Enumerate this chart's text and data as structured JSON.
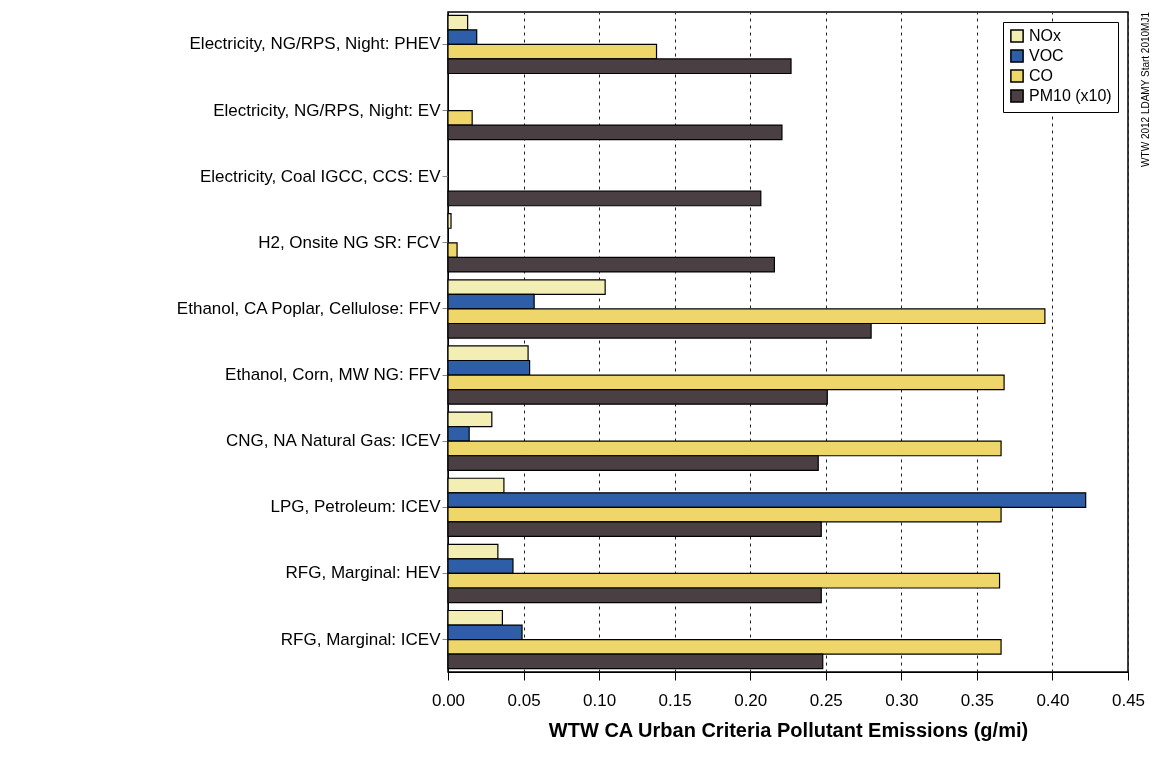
{
  "chart_data": {
    "type": "bar",
    "orientation": "horizontal",
    "xlabel": "WTW CA Urban Criteria Pollutant Emissions (g/mi)",
    "categories": [
      "Electricity, NG/RPS, Night: PHEV",
      "Electricity, NG/RPS, Night: EV",
      "Electricity, Coal IGCC, CCS: EV",
      "H2, Onsite NG SR: FCV",
      "Ethanol, CA Poplar, Cellulose: FFV",
      "Ethanol, Corn, MW NG: FFV",
      "CNG, NA Natural Gas: ICEV",
      "LPG, Petroleum: ICEV",
      "RFG, Marginal: HEV",
      "RFG, Marginal: ICEV"
    ],
    "series": [
      {
        "name": "NOx",
        "color": "#f3eeb4",
        "values": [
          0.013,
          null,
          null,
          0.002,
          0.104,
          0.053,
          0.029,
          0.037,
          0.033,
          0.036
        ]
      },
      {
        "name": "VOC",
        "color": "#2f5ea8",
        "values": [
          0.019,
          null,
          null,
          null,
          0.057,
          0.054,
          0.014,
          0.422,
          0.043,
          0.049
        ]
      },
      {
        "name": "CO",
        "color": "#efd66a",
        "values": [
          0.138,
          0.016,
          null,
          0.006,
          0.395,
          0.368,
          0.366,
          0.366,
          0.365,
          0.366
        ]
      },
      {
        "name": "PM10 (x10)",
        "color": "#4a4044",
        "values": [
          0.227,
          0.221,
          0.207,
          0.216,
          0.28,
          0.251,
          0.245,
          0.247,
          0.247,
          0.248
        ]
      }
    ],
    "xlim": [
      0,
      0.45
    ],
    "xticks": [
      {
        "value": 0,
        "label": "0.00"
      },
      {
        "value": 0.05,
        "label": "0.05"
      },
      {
        "value": 0.1,
        "label": "0.10"
      },
      {
        "value": 0.15,
        "label": "0.15"
      },
      {
        "value": 0.2,
        "label": "0.20"
      },
      {
        "value": 0.25,
        "label": "0.25"
      },
      {
        "value": 0.3,
        "label": "0.30"
      },
      {
        "value": 0.35,
        "label": "0.35"
      },
      {
        "value": 0.4,
        "label": "0.40"
      },
      {
        "value": 0.45,
        "label": "0.45"
      }
    ],
    "grid": "x",
    "legend": "top right",
    "annotations": [
      "WTW 2012 LDAMY Start 2010MJ1"
    ]
  }
}
